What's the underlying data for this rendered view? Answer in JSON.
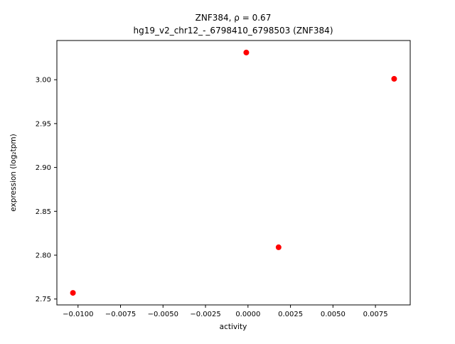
{
  "figure": {
    "background": "#ffffff"
  },
  "chart_data": {
    "type": "scatter",
    "title": "ZNF384, ρ = 0.67",
    "subtitle": "hg19_v2_chr12_-_6798410_6798503 (ZNF384)",
    "xlabel": "activity",
    "ylabel": "expression (log₂tpm)",
    "xlim": [
      -0.011245,
      0.009545
    ],
    "ylim": [
      2.7433,
      3.0447
    ],
    "xticks": [
      -0.01,
      -0.0075,
      -0.005,
      -0.0025,
      0.0,
      0.0025,
      0.005,
      0.0075
    ],
    "xtick_labels": [
      "−0.0100",
      "−0.0075",
      "−0.0050",
      "−0.0025",
      "0.0000",
      "0.0025",
      "0.0050",
      "0.0075"
    ],
    "yticks": [
      2.75,
      2.8,
      2.85,
      2.9,
      2.95,
      3.0
    ],
    "ytick_labels": [
      "2.75",
      "2.80",
      "2.85",
      "2.90",
      "2.95",
      "3.00"
    ],
    "points": [
      {
        "x": -0.0103,
        "y": 2.757
      },
      {
        "x": -0.0001,
        "y": 3.031
      },
      {
        "x": 0.0018,
        "y": 2.809
      },
      {
        "x": 0.0086,
        "y": 3.001
      }
    ],
    "marker_color": "#ff0000",
    "marker_radius": 4,
    "grid": false,
    "legend": null,
    "spine_color": "#000000"
  }
}
